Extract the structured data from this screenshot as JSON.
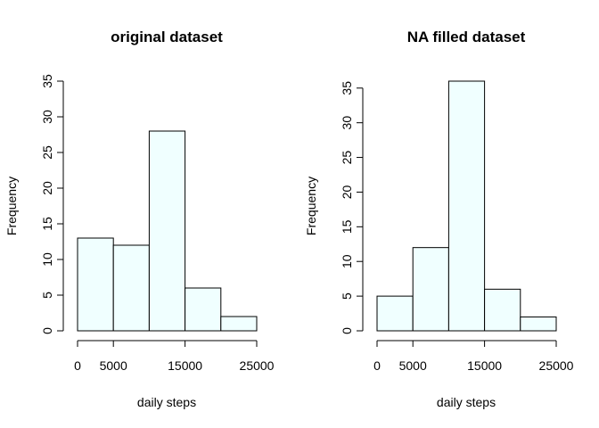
{
  "chart_data": [
    {
      "type": "bar",
      "title": "original dataset",
      "xlabel": "daily steps",
      "ylabel": "Frequency",
      "bin_edges": [
        0,
        5000,
        10000,
        15000,
        20000,
        25000
      ],
      "values": [
        13,
        12,
        28,
        6,
        2
      ],
      "bar_color": "#f0ffff",
      "ylim": [
        0,
        35
      ],
      "yticks": [
        0,
        5,
        10,
        15,
        20,
        25,
        30,
        35
      ],
      "xticks": [
        0,
        5000,
        15000,
        25000
      ],
      "xtick_labels": [
        "0",
        "5000",
        "15000",
        "25000"
      ],
      "grid": false
    },
    {
      "type": "bar",
      "title": "NA filled dataset",
      "xlabel": "daily steps",
      "ylabel": "Frequency",
      "bin_edges": [
        0,
        5000,
        10000,
        15000,
        20000,
        25000
      ],
      "values": [
        5,
        12,
        36,
        6,
        2
      ],
      "bar_color": "#f0ffff",
      "ylim": [
        0,
        36
      ],
      "yticks": [
        0,
        5,
        10,
        15,
        20,
        25,
        30,
        35
      ],
      "xticks": [
        0,
        5000,
        15000,
        25000
      ],
      "xtick_labels": [
        "0",
        "5000",
        "15000",
        "25000"
      ],
      "grid": false
    }
  ]
}
